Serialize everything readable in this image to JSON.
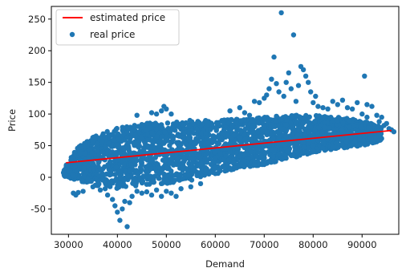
{
  "chart_data": {
    "type": "scatter",
    "title": "",
    "xlabel": "Demand",
    "ylabel": "Price",
    "xlim": [
      26500,
      97500
    ],
    "ylim": [
      -90,
      270
    ],
    "xticks": [
      30000,
      40000,
      50000,
      60000,
      70000,
      80000,
      90000
    ],
    "yticks": [
      -50,
      0,
      50,
      100,
      150,
      200,
      250
    ],
    "grid": false,
    "legend": {
      "location": "upper-left",
      "entries": [
        {
          "label": "estimated price",
          "kind": "line",
          "color": "#ff0000"
        },
        {
          "label": "real price",
          "kind": "marker",
          "color": "#1f77b4"
        }
      ]
    },
    "series": [
      {
        "name": "estimated price",
        "kind": "line",
        "color": "#ff0000",
        "x": [
          29500,
          96000
        ],
        "y": [
          23,
          74
        ]
      },
      {
        "name": "real price",
        "kind": "scatter",
        "color": "#1f77b4",
        "band": {
          "description": "dense cloud of observations",
          "points_x": [
            29000,
            32000,
            35000,
            40000,
            45000,
            50000,
            55000,
            60000,
            65000,
            70000,
            75000,
            80000,
            85000,
            90000,
            94000
          ],
          "upper_y": [
            14,
            48,
            65,
            78,
            85,
            88,
            90,
            90,
            92,
            95,
            98,
            98,
            95,
            90,
            80
          ],
          "lower_y": [
            2,
            -5,
            -12,
            -18,
            -12,
            -10,
            -5,
            5,
            15,
            20,
            30,
            38,
            45,
            50,
            58
          ]
        },
        "points": [
          [
            29000,
            7
          ],
          [
            29500,
            3
          ],
          [
            30000,
            10
          ],
          [
            31000,
            -25
          ],
          [
            31500,
            -28
          ],
          [
            32000,
            -24
          ],
          [
            33000,
            -22
          ],
          [
            35000,
            -15
          ],
          [
            36500,
            -20
          ],
          [
            37500,
            -18
          ],
          [
            38000,
            -28
          ],
          [
            39000,
            -35
          ],
          [
            39500,
            -45
          ],
          [
            40000,
            -55
          ],
          [
            40500,
            -68
          ],
          [
            41000,
            -50
          ],
          [
            41500,
            -38
          ],
          [
            42000,
            -78
          ],
          [
            42500,
            -40
          ],
          [
            43000,
            -30
          ],
          [
            44000,
            -22
          ],
          [
            45000,
            -25
          ],
          [
            46000,
            -23
          ],
          [
            47000,
            -28
          ],
          [
            48000,
            -20
          ],
          [
            49000,
            -30
          ],
          [
            50000,
            -22
          ],
          [
            51000,
            -25
          ],
          [
            52000,
            -30
          ],
          [
            53000,
            -18
          ],
          [
            55000,
            -15
          ],
          [
            57000,
            -10
          ],
          [
            49000,
            105
          ],
          [
            49500,
            112
          ],
          [
            50000,
            108
          ],
          [
            48000,
            100
          ],
          [
            44000,
            98
          ],
          [
            47000,
            102
          ],
          [
            51000,
            100
          ],
          [
            63000,
            105
          ],
          [
            65000,
            110
          ],
          [
            66000,
            102
          ],
          [
            67000,
            98
          ],
          [
            68000,
            120
          ],
          [
            69000,
            118
          ],
          [
            70000,
            125
          ],
          [
            70500,
            130
          ],
          [
            71000,
            140
          ],
          [
            71500,
            155
          ],
          [
            72000,
            190
          ],
          [
            72500,
            148
          ],
          [
            73000,
            135
          ],
          [
            73500,
            260
          ],
          [
            74000,
            128
          ],
          [
            74500,
            150
          ],
          [
            75000,
            165
          ],
          [
            75500,
            140
          ],
          [
            76000,
            225
          ],
          [
            76500,
            120
          ],
          [
            77000,
            145
          ],
          [
            77500,
            175
          ],
          [
            78000,
            170
          ],
          [
            78500,
            160
          ],
          [
            79000,
            150
          ],
          [
            79500,
            135
          ],
          [
            80000,
            118
          ],
          [
            80500,
            128
          ],
          [
            81000,
            112
          ],
          [
            82000,
            110
          ],
          [
            83000,
            108
          ],
          [
            84000,
            120
          ],
          [
            85000,
            115
          ],
          [
            86000,
            122
          ],
          [
            87000,
            110
          ],
          [
            88000,
            108
          ],
          [
            89000,
            118
          ],
          [
            90000,
            100
          ],
          [
            91000,
            115
          ],
          [
            92000,
            112
          ],
          [
            93000,
            98
          ],
          [
            93500,
            88
          ],
          [
            94000,
            95
          ],
          [
            94500,
            82
          ],
          [
            95000,
            85
          ],
          [
            95500,
            77
          ],
          [
            96000,
            75
          ],
          [
            96500,
            72
          ],
          [
            90500,
            160
          ],
          [
            91000,
            95
          ],
          [
            92500,
            70
          ],
          [
            93500,
            65
          ],
          [
            91500,
            60
          ],
          [
            88500,
            55
          ],
          [
            86000,
            52
          ],
          [
            84000,
            48
          ],
          [
            82000,
            46
          ],
          [
            80000,
            42
          ],
          [
            78000,
            38
          ],
          [
            76000,
            35
          ],
          [
            74000,
            30
          ],
          [
            72000,
            25
          ],
          [
            70000,
            22
          ],
          [
            68000,
            20
          ],
          [
            66000,
            18
          ],
          [
            64000,
            15
          ],
          [
            62000,
            10
          ],
          [
            60000,
            6
          ]
        ]
      }
    ]
  }
}
